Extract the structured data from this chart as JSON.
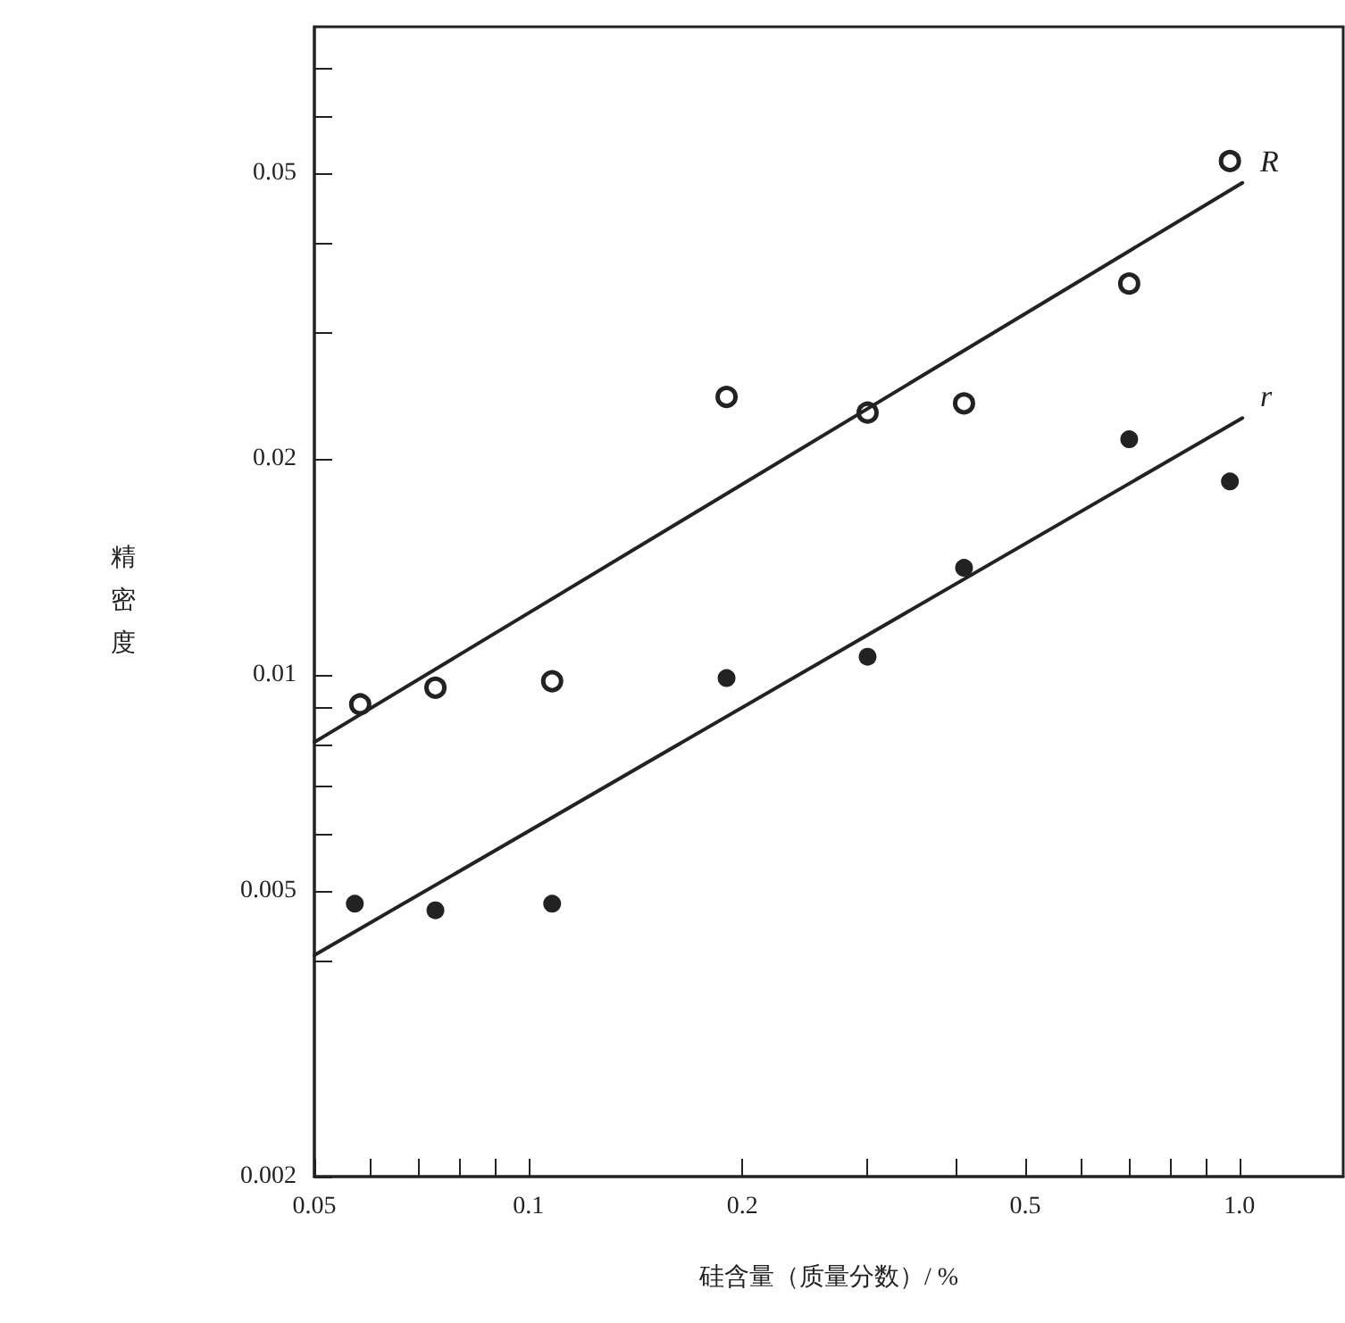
{
  "chart_data": {
    "type": "scatter",
    "xlabel": "硅含量（质量分数）/ %",
    "ylabel": "精密度",
    "log": "xy",
    "marker": "circle",
    "grid": false,
    "legend": false,
    "xlim": [
      0.05,
      1.4
    ],
    "ylim": [
      0.002,
      0.08
    ],
    "xticks": [
      {
        "value": 0.05,
        "label": "0.05"
      },
      {
        "value": 0.06,
        "label": null
      },
      {
        "value": 0.07,
        "label": null
      },
      {
        "value": 0.08,
        "label": null
      },
      {
        "value": 0.09,
        "label": null
      },
      {
        "value": 0.1,
        "label": "0.1"
      },
      {
        "value": 0.2,
        "label": "0.2"
      },
      {
        "value": 0.3,
        "label": null
      },
      {
        "value": 0.4,
        "label": null
      },
      {
        "value": 0.5,
        "label": "0.5"
      },
      {
        "value": 0.6,
        "label": null
      },
      {
        "value": 0.7,
        "label": null
      },
      {
        "value": 0.8,
        "label": null
      },
      {
        "value": 0.9,
        "label": null
      },
      {
        "value": 1,
        "label": "1.0"
      }
    ],
    "yticks": [
      {
        "value": 0.002,
        "label": "0.002"
      },
      {
        "value": 0.004,
        "label": null
      },
      {
        "value": 0.005,
        "label": "0.005"
      },
      {
        "value": 0.006,
        "label": null
      },
      {
        "value": 0.007,
        "label": null
      },
      {
        "value": 0.008,
        "label": null
      },
      {
        "value": 0.009,
        "label": null
      },
      {
        "value": 0.01,
        "label": "0.01"
      },
      {
        "value": 0.02,
        "label": "0.02"
      },
      {
        "value": 0.03,
        "label": null
      },
      {
        "value": 0.04,
        "label": null
      },
      {
        "value": 0.05,
        "label": "0.05"
      },
      {
        "value": 0.06,
        "label": null
      },
      {
        "value": 0.07,
        "label": null
      }
    ],
    "series": [
      {
        "color": "#ffffff",
        "x": [
          0.058,
          0.074,
          0.108,
          0.19,
          0.3,
          0.41,
          0.7,
          0.97
        ],
        "values": [
          0.0091,
          0.0096,
          0.0098,
          0.0244,
          0.0232,
          0.0239,
          0.0351,
          0.052
        ]
      },
      {
        "color": "#222222",
        "x": [
          0.057,
          0.074,
          0.108,
          0.19,
          0.3,
          0.41,
          0.7,
          0.97
        ],
        "values": [
          0.0048,
          0.0047,
          0.0048,
          0.0099,
          0.0106,
          0.0141,
          0.0213,
          0.0186
        ]
      },
      {
        "type": "line",
        "name": "R",
        "color": "#222222",
        "marker": "none",
        "line_style": "solid",
        "x": [
          0.05,
          1.01
        ],
        "values": [
          0.00806,
          0.0485
        ]
      },
      {
        "type": "line",
        "name": "r",
        "color": "#222222",
        "marker": "none",
        "line_style": "solid",
        "x": [
          0.05,
          1.01
        ],
        "values": [
          0.00407,
          0.0228
        ]
      }
    ]
  }
}
